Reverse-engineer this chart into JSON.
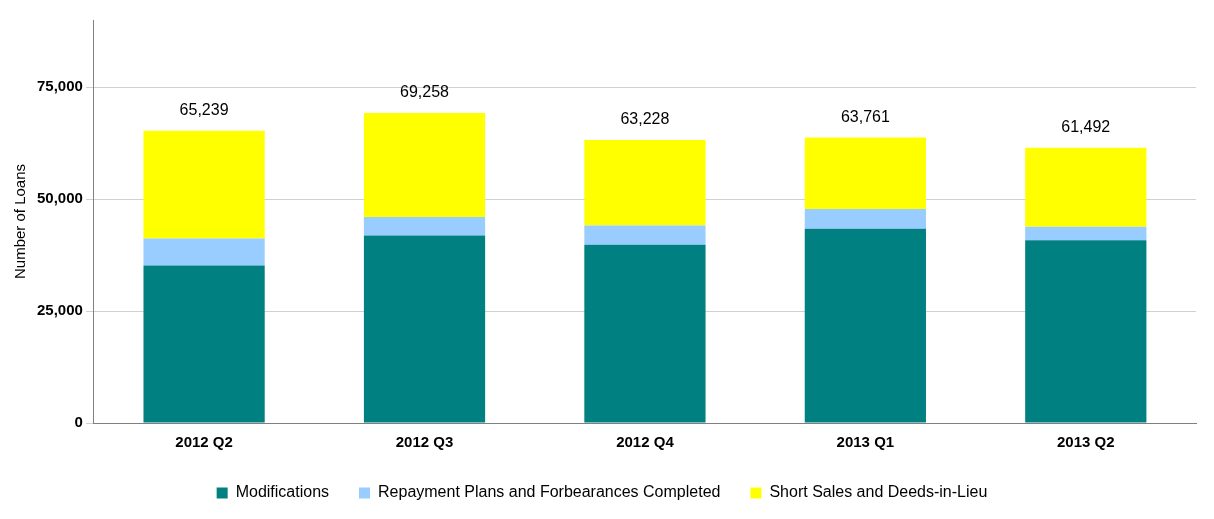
{
  "chart_data": {
    "type": "bar",
    "ylabel": "Number of Loans",
    "categories": [
      "2012 Q2",
      "2012 Q3",
      "2012 Q4",
      "2013 Q1",
      "2013 Q2"
    ],
    "stacked": true,
    "series": [
      {
        "name": "Modifications",
        "color": "#008080",
        "values": [
          35200,
          41900,
          39800,
          43400,
          40800
        ]
      },
      {
        "name": "Repayment Plans and Forbearances Completed",
        "color": "#99ccff",
        "values": [
          6000,
          4100,
          4300,
          4400,
          3000
        ]
      },
      {
        "name": "Short Sales and Deeds-in-Lieu",
        "color": "#ffff00",
        "values": [
          24039,
          23258,
          19128,
          15961,
          17692
        ]
      }
    ],
    "totals": [
      "65,239",
      "69,258",
      "63,228",
      "63,761",
      "61,492"
    ],
    "ylim": [
      0,
      90000
    ],
    "yticks": [
      {
        "value": 0,
        "label": "0"
      },
      {
        "value": 25000,
        "label": "25,000"
      },
      {
        "value": 50000,
        "label": "50,000"
      },
      {
        "value": 75000,
        "label": "75,000"
      }
    ],
    "grid": "y",
    "legend": "bottom"
  }
}
